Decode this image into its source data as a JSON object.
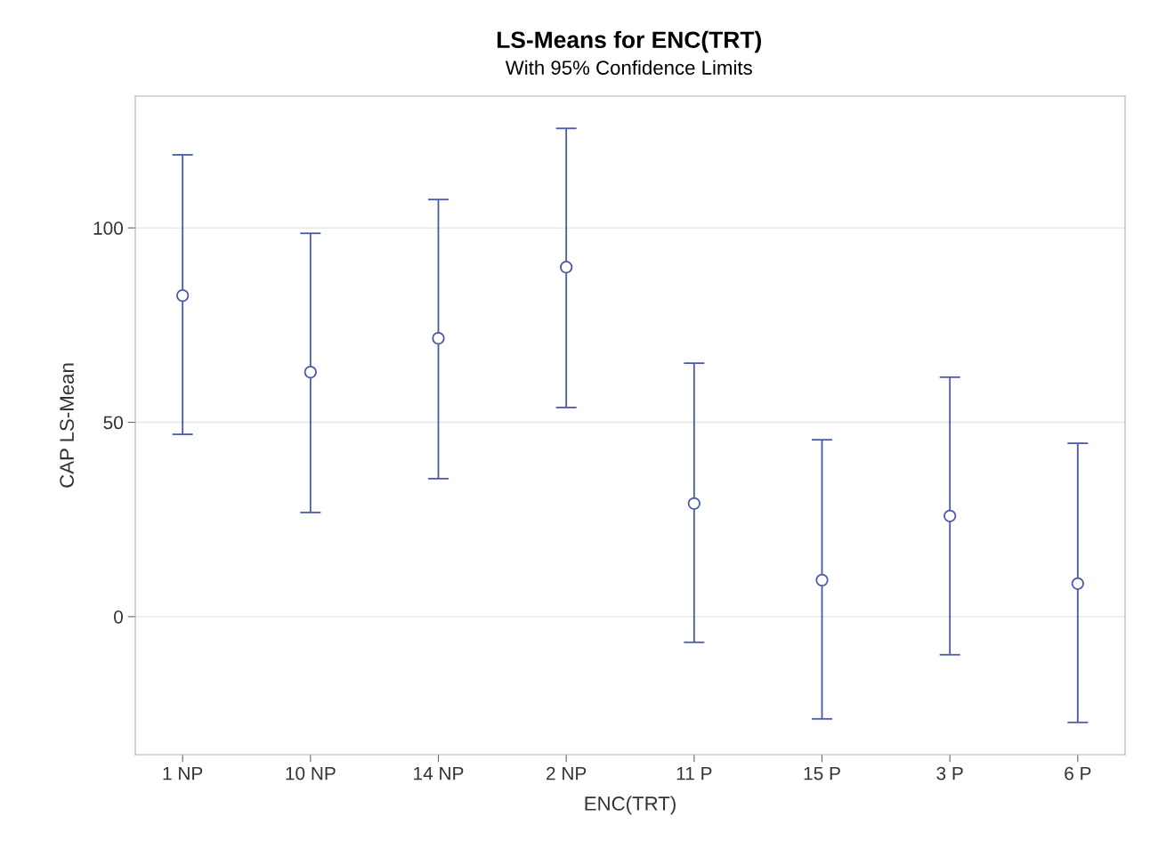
{
  "chart_data": {
    "type": "scatter",
    "title": "LS-Means for ENC(TRT)",
    "subtitle": "With 95% Confidence Limits",
    "xlabel": "ENC(TRT)",
    "ylabel": "CAP LS-Mean",
    "categories": [
      "1 NP",
      "10 NP",
      "14 NP",
      "2 NP",
      "11 P",
      "15 P",
      "3 P",
      "6 P"
    ],
    "series": [
      {
        "color": "#4a5aa8",
        "values": [
          82.6,
          62.9,
          71.6,
          89.9,
          29.1,
          9.4,
          25.9,
          8.5
        ],
        "errors": [
          [
            46.9,
            118.8
          ],
          [
            26.8,
            98.6
          ],
          [
            35.5,
            107.3
          ],
          [
            53.8,
            125.6
          ],
          [
            -6.6,
            65.2
          ],
          [
            -26.3,
            45.5
          ],
          [
            -9.8,
            61.6
          ],
          [
            -27.2,
            44.6
          ]
        ]
      }
    ],
    "ylim": [
      -35.5,
      133.9
    ],
    "yticks": [
      0,
      50,
      100
    ],
    "grid": "y",
    "marker": "circle",
    "legend": false
  }
}
